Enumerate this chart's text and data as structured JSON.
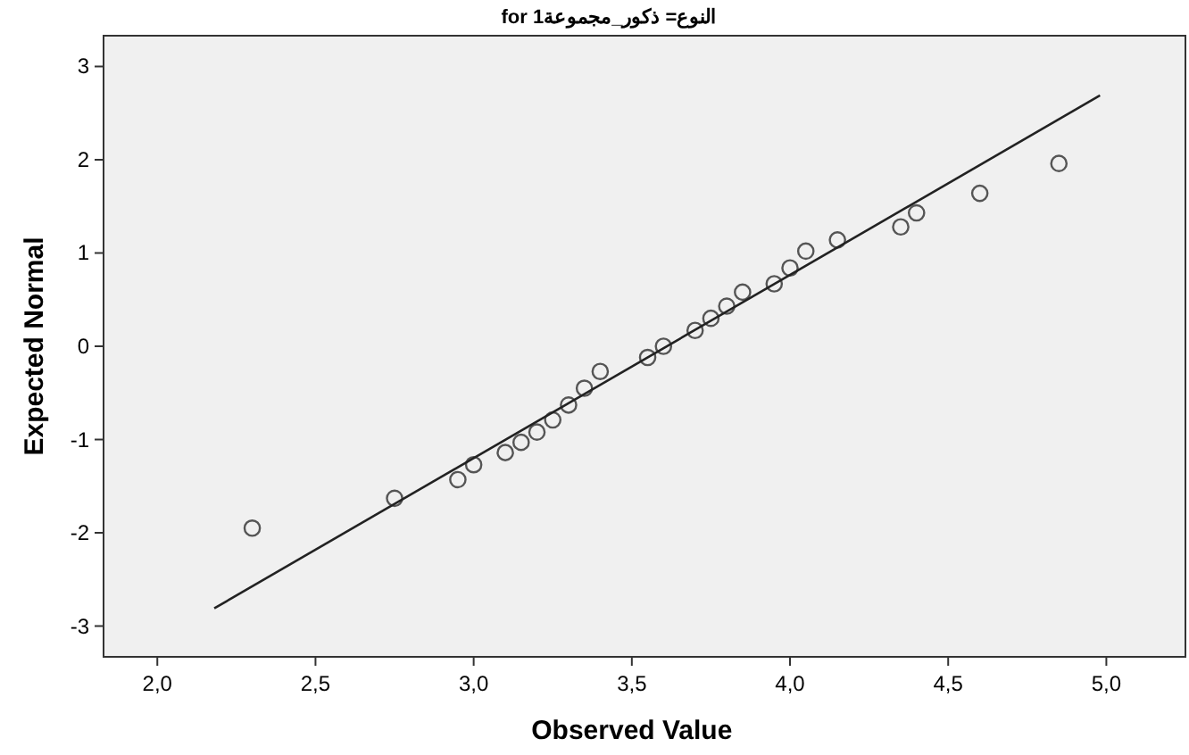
{
  "chart_data": {
    "type": "scatter",
    "title": "for النوع= ذكور_مجموعة1",
    "xlabel": "Observed Value",
    "ylabel": "Expected Normal",
    "xlim": [
      1.83,
      5.25
    ],
    "ylim": [
      -3.33,
      3.33
    ],
    "xticks": [
      {
        "value": 2,
        "label": "2,0"
      },
      {
        "value": 2.5,
        "label": "2,5"
      },
      {
        "value": 3,
        "label": "3,0"
      },
      {
        "value": 3.5,
        "label": "3,5"
      },
      {
        "value": 4,
        "label": "4,0"
      },
      {
        "value": 4.5,
        "label": "4,5"
      },
      {
        "value": 5,
        "label": "5,0"
      }
    ],
    "yticks": [
      -3,
      -2,
      -1,
      0,
      1,
      2,
      3
    ],
    "series": [
      {
        "marker": "circle",
        "color": "#555555",
        "x": [
          2.3,
          2.75,
          2.95,
          3.0,
          3.1,
          3.15,
          3.2,
          3.25,
          3.3,
          3.35,
          3.4,
          3.55,
          3.6,
          3.7,
          3.75,
          3.8,
          3.85,
          3.95,
          4.0,
          4.05,
          4.15,
          4.35,
          4.4,
          4.6,
          4.85
        ],
        "values": [
          -1.95,
          -1.63,
          -1.43,
          -1.27,
          -1.14,
          -1.03,
          -0.92,
          -0.79,
          -0.63,
          -0.45,
          -0.27,
          -0.12,
          0.0,
          0.17,
          0.3,
          0.43,
          0.58,
          0.67,
          0.84,
          1.02,
          1.14,
          1.28,
          1.43,
          1.64,
          1.96
        ]
      },
      {
        "type": "line",
        "marker": "none",
        "color": "#222222",
        "x": [
          2.18,
          4.98
        ],
        "values": [
          -2.81,
          2.69
        ]
      }
    ]
  }
}
